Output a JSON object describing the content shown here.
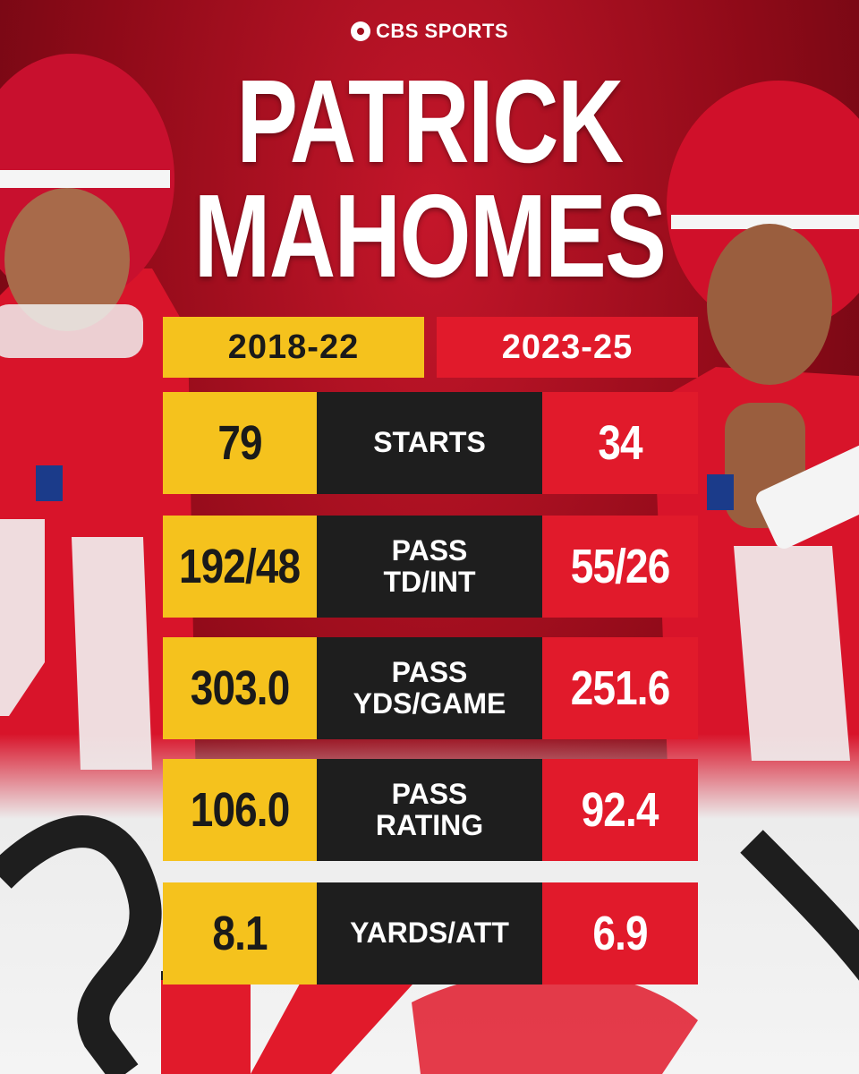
{
  "brand": {
    "name": "CBS SPORTS",
    "icon": "cbs-eye-icon"
  },
  "title": {
    "line1": "PATRICK",
    "line2": "MAHOMES"
  },
  "columns": {
    "left": "2018-22",
    "right": "2023-25"
  },
  "colors": {
    "left": "#f5c21d",
    "right": "#e11a2b",
    "middle": "#1e1e1e",
    "background": "#b30f1f"
  },
  "stats": [
    {
      "label_lines": [
        "STARTS"
      ],
      "left": "79",
      "right": "34"
    },
    {
      "label_lines": [
        "PASS",
        "TD/INT"
      ],
      "left": "192/48",
      "right": "55/26"
    },
    {
      "label_lines": [
        "PASS",
        "YDS/GAME"
      ],
      "left": "303.0",
      "right": "251.6"
    },
    {
      "label_lines": [
        "PASS",
        "RATING"
      ],
      "left": "106.0",
      "right": "92.4"
    },
    {
      "label_lines": [
        "YARDS/ATT"
      ],
      "left": "8.1",
      "right": "6.9"
    }
  ]
}
